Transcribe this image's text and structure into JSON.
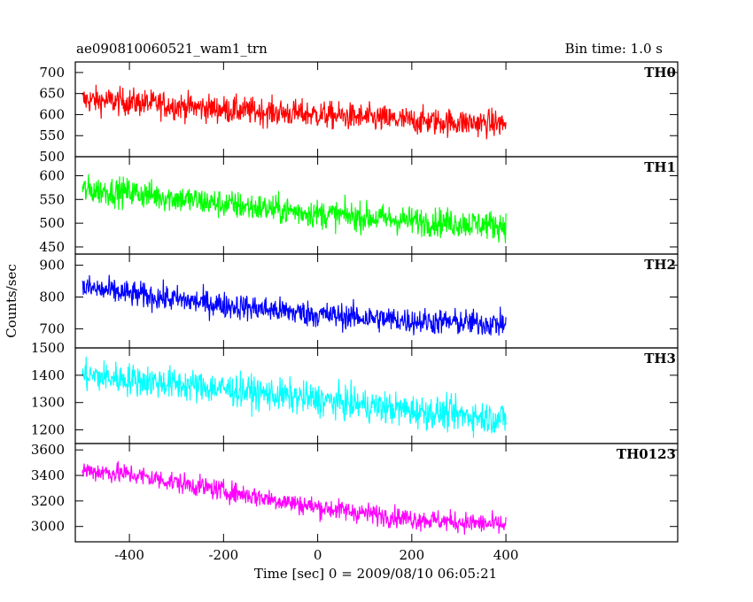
{
  "chart_data": {
    "type": "line",
    "title_left": "ae090810060521_wam1_trn",
    "title_right": "Bin time: 1.0 s",
    "xlabel": "Time [sec] 0 = 2009/08/10 06:05:21",
    "ylabel": "Counts/sec",
    "xlim": [
      -515,
      765
    ],
    "xticks": [
      -400,
      -200,
      0,
      200,
      400
    ],
    "x_range": [
      -500,
      400
    ],
    "grid": false,
    "panels": [
      {
        "name": "TH0",
        "color": "#ff0000",
        "ylim": [
          500,
          725
        ],
        "yticks": [
          500,
          550,
          600,
          650,
          700
        ],
        "trend": [
          {
            "x": -500,
            "y": 635
          },
          {
            "x": -400,
            "y": 630
          },
          {
            "x": -200,
            "y": 612
          },
          {
            "x": 0,
            "y": 600
          },
          {
            "x": 200,
            "y": 585
          },
          {
            "x": 400,
            "y": 578
          }
        ],
        "noise": 30
      },
      {
        "name": "TH1",
        "color": "#00ff00",
        "ylim": [
          435,
          640
        ],
        "yticks": [
          450,
          500,
          550,
          600
        ],
        "trend": [
          {
            "x": -500,
            "y": 570
          },
          {
            "x": -400,
            "y": 565
          },
          {
            "x": -200,
            "y": 540
          },
          {
            "x": 0,
            "y": 520
          },
          {
            "x": 200,
            "y": 505
          },
          {
            "x": 400,
            "y": 495
          }
        ],
        "noise": 28
      },
      {
        "name": "TH2",
        "color": "#0000ff",
        "ylim": [
          640,
          935
        ],
        "yticks": [
          700,
          800,
          900
        ],
        "trend": [
          {
            "x": -500,
            "y": 830
          },
          {
            "x": -400,
            "y": 810
          },
          {
            "x": -200,
            "y": 775
          },
          {
            "x": 0,
            "y": 745
          },
          {
            "x": 200,
            "y": 725
          },
          {
            "x": 400,
            "y": 715
          }
        ],
        "noise": 38
      },
      {
        "name": "TH3",
        "color": "#00ffff",
        "ylim": [
          1150,
          1500
        ],
        "yticks": [
          1200,
          1300,
          1400,
          1500
        ],
        "trend": [
          {
            "x": -500,
            "y": 1400
          },
          {
            "x": -400,
            "y": 1385
          },
          {
            "x": -200,
            "y": 1350
          },
          {
            "x": 0,
            "y": 1310
          },
          {
            "x": 200,
            "y": 1270
          },
          {
            "x": 400,
            "y": 1240
          }
        ],
        "noise": 55
      },
      {
        "name": "TH0123",
        "color": "#ff00ff",
        "ylim": [
          2880,
          3650
        ],
        "yticks": [
          3000,
          3200,
          3400,
          3600
        ],
        "trend": [
          {
            "x": -500,
            "y": 3440
          },
          {
            "x": -400,
            "y": 3410
          },
          {
            "x": -200,
            "y": 3280
          },
          {
            "x": 0,
            "y": 3150
          },
          {
            "x": 200,
            "y": 3060
          },
          {
            "x": 400,
            "y": 3010
          }
        ],
        "noise": 75
      }
    ]
  }
}
